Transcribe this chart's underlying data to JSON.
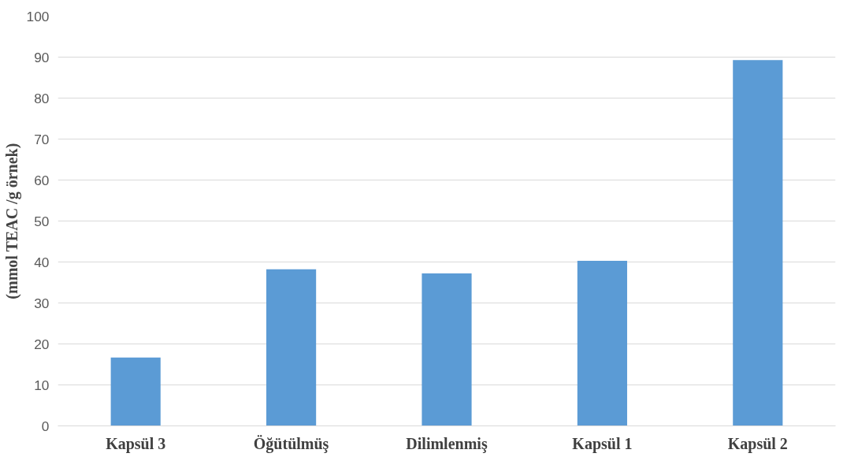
{
  "chart_data": {
    "type": "bar",
    "ylabel": "(mmol TEAC /g örnek)",
    "categories": [
      "Kapsül 3",
      "Öğütülmüş",
      "Dilimlenmiş",
      "Kapsül 1",
      "Kapsül 2"
    ],
    "values": [
      16.7,
      38.2,
      37.2,
      40.3,
      89.3
    ],
    "color": "#5b9bd5",
    "ylim": [
      0,
      100
    ],
    "yticks": [
      0,
      10,
      20,
      30,
      40,
      50,
      60,
      70,
      80,
      90,
      100
    ],
    "grid": "y"
  }
}
